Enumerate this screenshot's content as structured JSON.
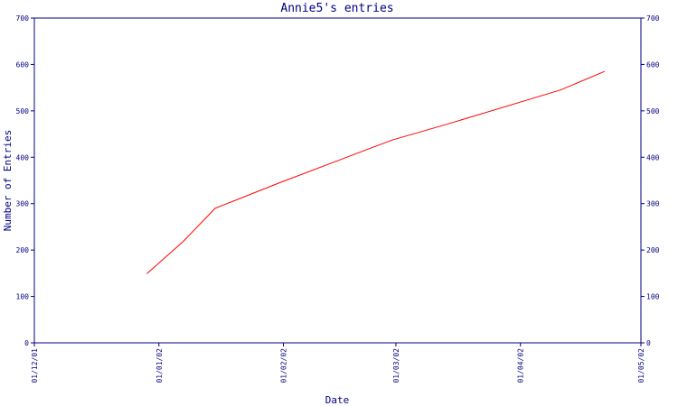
{
  "chart_data": {
    "type": "line",
    "title": "Annie5's entries",
    "xlabel": "Date",
    "ylabel": "Number of Entries",
    "ylim": [
      0,
      700
    ],
    "y_ticks": [
      0,
      100,
      200,
      300,
      400,
      500,
      600,
      700
    ],
    "y_tick_labels": [
      "0",
      "100",
      "200",
      "300",
      "400",
      "500",
      "600",
      "700"
    ],
    "x_ticks": [
      "2001-12-01",
      "2002-01-01",
      "2002-02-01",
      "2002-03-01",
      "2002-04-01",
      "2002-05-01"
    ],
    "x_tick_labels": [
      "01/12/01",
      "01/01/02",
      "01/02/02",
      "01/03/02",
      "01/04/02",
      "01/05/02"
    ],
    "xlim": [
      "2001-12-01",
      "2002-05-01"
    ],
    "grid": false,
    "right_y_axis": true,
    "series": [
      {
        "color": "#ff0000",
        "points": [
          {
            "x": "2001-12-29",
            "y": 149
          },
          {
            "x": "2002-01-07",
            "y": 218
          },
          {
            "x": "2002-01-15",
            "y": 290
          },
          {
            "x": "2002-01-31",
            "y": 345
          },
          {
            "x": "2002-02-28",
            "y": 437
          },
          {
            "x": "2002-03-14",
            "y": 472
          },
          {
            "x": "2002-04-11",
            "y": 545
          },
          {
            "x": "2002-04-22",
            "y": 585
          }
        ]
      }
    ],
    "colors": {
      "axis": "#000080",
      "text": "#000080",
      "label_text": "#000080",
      "line": "#ff0000",
      "background": "#ffffff"
    }
  }
}
